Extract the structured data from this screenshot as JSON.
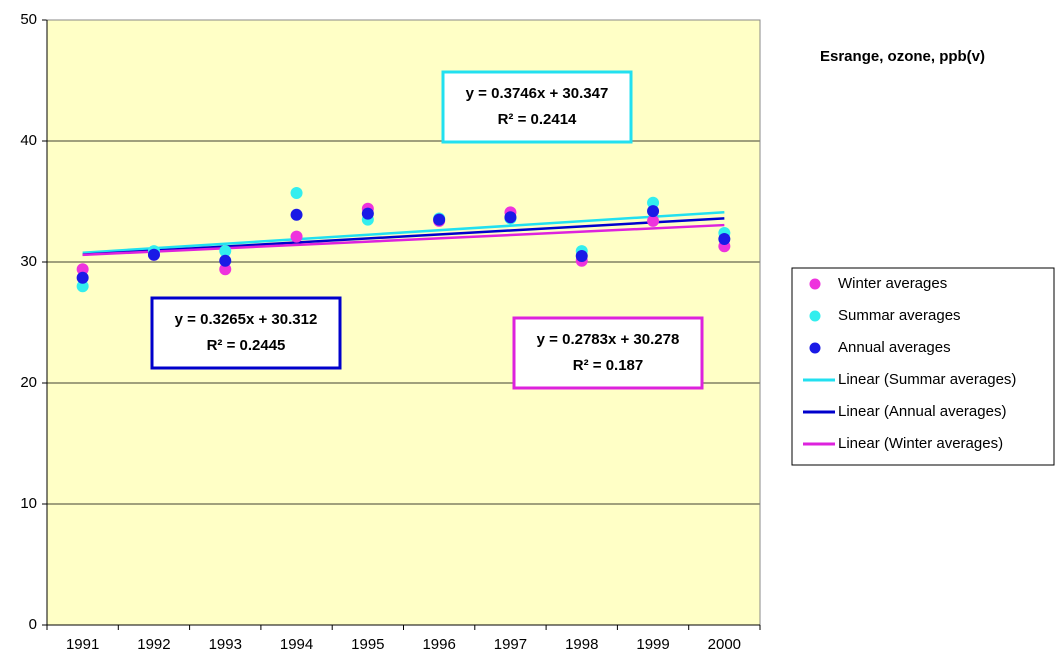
{
  "chart_data": {
    "type": "scatter",
    "title": "Esrange, ozone, ppb(v)",
    "categories": [
      "1991",
      "1992",
      "1993",
      "1994",
      "1995",
      "1996",
      "1997",
      "1998",
      "1999",
      "2000"
    ],
    "ylim": [
      0,
      50
    ],
    "yticks": [
      0,
      10,
      20,
      30,
      40,
      50
    ],
    "grid": true,
    "legend": "right",
    "series": [
      {
        "name": "Winter averages",
        "color": "#ee33dd",
        "values": [
          29.4,
          30.6,
          29.4,
          32.1,
          34.4,
          33.4,
          34.1,
          30.1,
          33.4,
          31.3
        ],
        "trend": {
          "name": "Linear (Winter averages)",
          "color": "#dd22dd",
          "equation": "y = 0.2783x + 30.278",
          "r2": "R² = 0.187"
        }
      },
      {
        "name": "Summar averages",
        "color": "#33eeee",
        "values": [
          28.0,
          30.9,
          30.9,
          35.7,
          33.5,
          33.6,
          33.6,
          30.9,
          34.9,
          32.4
        ],
        "trend": {
          "name": "Linear (Summar averages)",
          "color": "#22e0f0",
          "equation": "y = 0.3746x + 30.347",
          "r2": "R² = 0.2414"
        }
      },
      {
        "name": "Annual averages",
        "color": "#1a1ae6",
        "values": [
          28.7,
          30.6,
          30.1,
          33.9,
          34.0,
          33.5,
          33.7,
          30.5,
          34.2,
          31.9
        ],
        "trend": {
          "name": "Linear (Annual averages)",
          "color": "#0000cc",
          "equation": "y = 0.3265x + 30.312",
          "r2": "R² = 0.2445"
        }
      }
    ]
  }
}
